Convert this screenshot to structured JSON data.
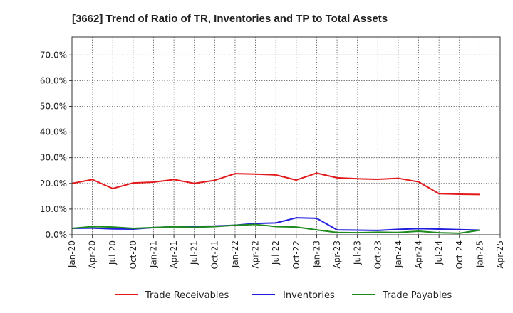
{
  "chart_data": {
    "type": "line",
    "title": "[3662]  Trend of Ratio of TR, Inventories and TP to Total Assets",
    "xlabel": "",
    "ylabel": "",
    "x_ticks": [
      "Jan-20",
      "Apr-20",
      "Jul-20",
      "Oct-20",
      "Jan-21",
      "Apr-21",
      "Jul-21",
      "Oct-21",
      "Jan-22",
      "Apr-22",
      "Jul-22",
      "Oct-22",
      "Jan-23",
      "Apr-23",
      "Jul-23",
      "Oct-23",
      "Jan-24",
      "Apr-24",
      "Jul-24",
      "Oct-24",
      "Jan-25",
      "Apr-25"
    ],
    "y_ticks": [
      "0.0%",
      "10.0%",
      "20.0%",
      "30.0%",
      "40.0%",
      "50.0%",
      "60.0%",
      "70.0%"
    ],
    "y_tick_values": [
      0,
      10,
      20,
      30,
      40,
      50,
      60,
      70
    ],
    "ylim": [
      0,
      77
    ],
    "x_range": [
      "Jan-20",
      "Apr-25"
    ],
    "grid": true,
    "legend_position": "bottom",
    "series": [
      {
        "name": "Trade Receivables",
        "color": "#e31a1c",
        "x": [
          "Jan-20",
          "Apr-20",
          "Jul-20",
          "Oct-20",
          "Jan-21",
          "Apr-21",
          "Jul-21",
          "Oct-21",
          "Jan-22",
          "Apr-22",
          "Jul-22",
          "Oct-22",
          "Jan-23",
          "Apr-23",
          "Jul-23",
          "Oct-23",
          "Jan-24",
          "Apr-24",
          "Jul-24",
          "Oct-24",
          "Jan-25"
        ],
        "values": [
          20.0,
          21.5,
          18.0,
          20.2,
          20.5,
          21.5,
          20.0,
          21.2,
          23.8,
          23.6,
          23.3,
          21.3,
          24.0,
          22.2,
          21.8,
          21.6,
          22.0,
          20.6,
          16.0,
          15.8,
          15.7
        ]
      },
      {
        "name": "Inventories",
        "color": "#1f1fdd",
        "x": [
          "Jan-20",
          "Apr-20",
          "Jul-20",
          "Oct-20",
          "Jan-21",
          "Apr-21",
          "Jul-21",
          "Oct-21",
          "Jan-22",
          "Apr-22",
          "Jul-22",
          "Oct-22",
          "Jan-23",
          "Apr-23",
          "Jul-23",
          "Oct-23",
          "Jan-24",
          "Apr-24",
          "Jul-24",
          "Oct-24",
          "Jan-25"
        ],
        "values": [
          2.5,
          2.6,
          2.3,
          2.2,
          2.8,
          3.1,
          3.3,
          3.4,
          3.7,
          4.4,
          4.6,
          6.6,
          6.4,
          1.9,
          1.8,
          1.7,
          2.1,
          2.4,
          2.2,
          2.0,
          1.8
        ]
      },
      {
        "name": "Trade Payables",
        "color": "#1f8a1f",
        "x": [
          "Jan-20",
          "Apr-20",
          "Jul-20",
          "Oct-20",
          "Jan-21",
          "Apr-21",
          "Jul-21",
          "Oct-21",
          "Jan-22",
          "Apr-22",
          "Jul-22",
          "Oct-22",
          "Jan-23",
          "Apr-23",
          "Jul-23",
          "Oct-23",
          "Jan-24",
          "Apr-24",
          "Jul-24",
          "Oct-24",
          "Jan-25"
        ],
        "values": [
          2.5,
          3.2,
          3.0,
          2.5,
          2.8,
          3.1,
          2.9,
          3.2,
          3.7,
          4.0,
          3.2,
          3.0,
          1.9,
          0.9,
          0.8,
          1.0,
          0.9,
          1.4,
          0.8,
          0.6,
          1.8
        ]
      }
    ]
  }
}
